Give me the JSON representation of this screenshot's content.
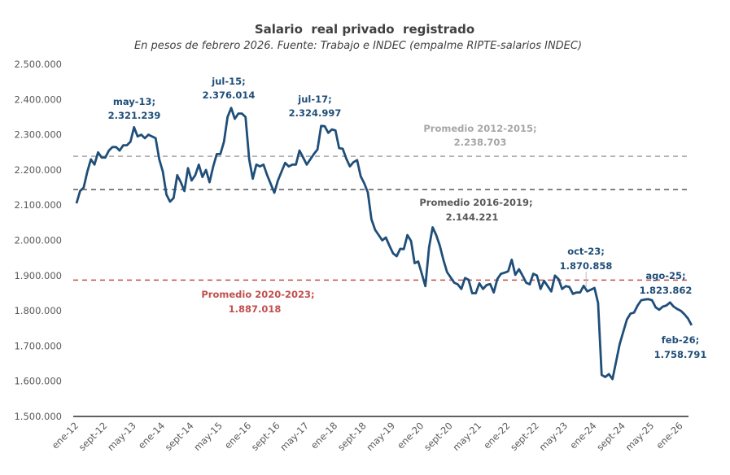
{
  "chart_data": {
    "type": "line",
    "title": "Salario  real privado  registrado",
    "subtitle": "En pesos de febrero 2026. Fuente: Trabajo e INDEC (empalme RIPTE-salarios INDEC)",
    "xlabel": "",
    "ylabel": "",
    "ylim": [
      1500000,
      2500000
    ],
    "grid": false,
    "legend": "none",
    "y_ticks": [
      "2.500.000",
      "2.400.000",
      "2.300.000",
      "2.200.000",
      "2.100.000",
      "2.000.000",
      "1.900.000",
      "1.800.000",
      "1.700.000",
      "1.600.000",
      "1.500.000"
    ],
    "y_tick_values": [
      2500000,
      2400000,
      2300000,
      2200000,
      2100000,
      2000000,
      1900000,
      1800000,
      1700000,
      1600000,
      1500000
    ],
    "x_ticks": [
      "ene-12",
      "sept-12",
      "may-13",
      "ene-14",
      "sept-14",
      "may-15",
      "ene-16",
      "sept-16",
      "may-17",
      "ene-18",
      "sept-18",
      "may-19",
      "ene-20",
      "sept-20",
      "may-21",
      "ene-22",
      "sept-22",
      "may-23",
      "ene-24",
      "sept-24",
      "may-25",
      "ene-26"
    ],
    "x_tick_month_index": [
      0,
      8,
      16,
      24,
      32,
      40,
      48,
      56,
      64,
      72,
      80,
      88,
      96,
      104,
      112,
      120,
      128,
      136,
      144,
      152,
      160,
      168
    ],
    "x_start": "ene-12",
    "x_end": "feb-26",
    "series": [
      {
        "name": "Salario real privado registrado",
        "color": "#1F4E79",
        "values": [
          2105000,
          2140000,
          2150000,
          2195000,
          2230000,
          2215000,
          2250000,
          2235000,
          2235000,
          2255000,
          2265000,
          2265000,
          2255000,
          2270000,
          2270000,
          2280000,
          2321239,
          2295000,
          2300000,
          2290000,
          2300000,
          2295000,
          2290000,
          2230000,
          2195000,
          2130000,
          2110000,
          2120000,
          2185000,
          2165000,
          2140000,
          2205000,
          2170000,
          2185000,
          2215000,
          2180000,
          2200000,
          2165000,
          2210000,
          2245000,
          2245000,
          2280000,
          2350000,
          2376014,
          2345000,
          2360000,
          2360000,
          2350000,
          2230000,
          2175000,
          2215000,
          2210000,
          2215000,
          2185000,
          2160000,
          2135000,
          2170000,
          2195000,
          2220000,
          2210000,
          2215000,
          2215000,
          2255000,
          2235000,
          2215000,
          2230000,
          2245000,
          2258000,
          2324997,
          2324000,
          2305000,
          2315000,
          2312000,
          2262000,
          2260000,
          2232000,
          2210000,
          2222000,
          2228000,
          2182000,
          2162000,
          2136000,
          2060000,
          2030000,
          2015000,
          2000000,
          2008000,
          1985000,
          1963000,
          1955000,
          1976000,
          1975000,
          2015000,
          1998000,
          1935000,
          1940000,
          1905000,
          1870000,
          1980000,
          2037000,
          2015000,
          1985000,
          1945000,
          1910000,
          1895000,
          1880000,
          1875000,
          1862000,
          1893000,
          1888000,
          1850000,
          1850000,
          1878000,
          1862000,
          1873000,
          1876000,
          1852000,
          1890000,
          1905000,
          1908000,
          1912000,
          1945000,
          1902000,
          1918000,
          1900000,
          1880000,
          1875000,
          1905000,
          1900000,
          1862000,
          1885000,
          1870000,
          1855000,
          1900000,
          1890000,
          1862000,
          1870000,
          1868000,
          1848000,
          1852000,
          1852000,
          1870858,
          1855000,
          1860000,
          1865000,
          1822000,
          1618000,
          1612000,
          1620000,
          1606000,
          1655000,
          1705000,
          1740000,
          1775000,
          1792000,
          1795000,
          1815000,
          1830000,
          1832000,
          1833000,
          1830000,
          1810000,
          1803000,
          1812000,
          1815000,
          1823862,
          1812000,
          1805000,
          1800000,
          1790000,
          1778000,
          1758791
        ]
      }
    ],
    "reference_lines": [
      {
        "name": "Promedio 2012-2015",
        "value": 2238703,
        "color": "#A6A6A6",
        "label": "Promedio 2012-2015;",
        "value_label": "2.238.703"
      },
      {
        "name": "Promedio 2016-2019",
        "value": 2144221,
        "color": "#595959",
        "label": "Promedio 2016-2019;",
        "value_label": "2.144.221"
      },
      {
        "name": "Promedio 2020-2023",
        "value": 1887018,
        "color": "#C0504D",
        "label": "Promedio 2020-2023;",
        "value_label": "1.887.018"
      }
    ],
    "annotations": [
      {
        "month": "may-13",
        "label": "may-13;",
        "value_label": "2.321.239",
        "value": 2321239
      },
      {
        "month": "jul-15",
        "label": "jul-15;",
        "value_label": "2.376.014",
        "value": 2376014
      },
      {
        "month": "jul-17",
        "label": "jul-17;",
        "value_label": "2.324.997",
        "value": 2324997
      },
      {
        "month": "oct-23",
        "label": "oct-23;",
        "value_label": "1.870.858",
        "value": 1870858
      },
      {
        "month": "ago-25",
        "label": "ago-25;",
        "value_label": "1.823.862",
        "value": 1823862
      },
      {
        "month": "feb-26",
        "label": "feb-26;",
        "value_label": "1.758.791",
        "value": 1758791
      }
    ]
  }
}
